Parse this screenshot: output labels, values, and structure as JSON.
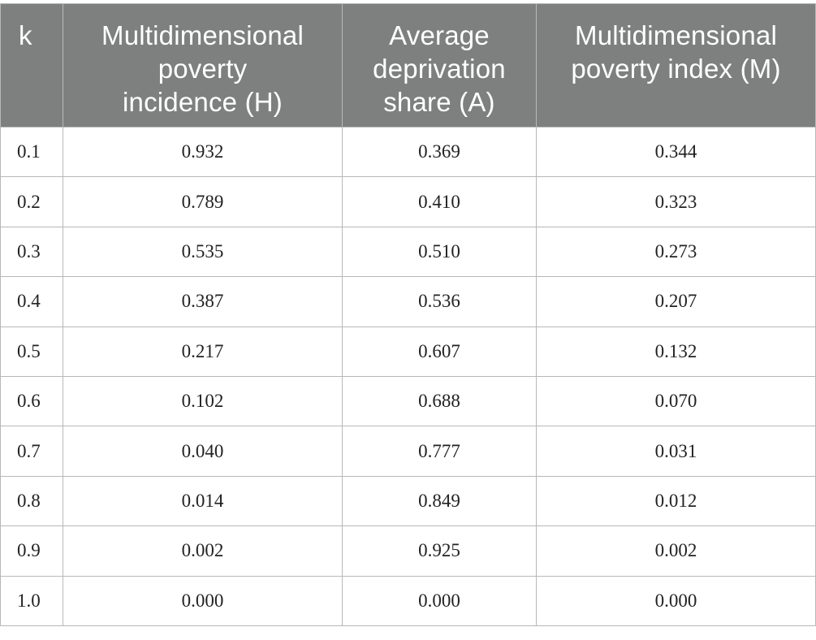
{
  "table": {
    "headers": [
      {
        "lines": [
          "k"
        ]
      },
      {
        "lines": [
          "Multidimensional",
          "poverty",
          "incidence (H)"
        ]
      },
      {
        "lines": [
          "Average",
          "deprivation",
          "share (A)"
        ]
      },
      {
        "lines": [
          "Multidimensional",
          "poverty index (M)"
        ]
      }
    ],
    "rows": [
      [
        "0.1",
        "0.932",
        "0.369",
        "0.344"
      ],
      [
        "0.2",
        "0.789",
        "0.410",
        "0.323"
      ],
      [
        "0.3",
        "0.535",
        "0.510",
        "0.273"
      ],
      [
        "0.4",
        "0.387",
        "0.536",
        "0.207"
      ],
      [
        "0.5",
        "0.217",
        "0.607",
        "0.132"
      ],
      [
        "0.6",
        "0.102",
        "0.688",
        "0.070"
      ],
      [
        "0.7",
        "0.040",
        "0.777",
        "0.031"
      ],
      [
        "0.8",
        "0.014",
        "0.849",
        "0.012"
      ],
      [
        "0.9",
        "0.002",
        "0.925",
        "0.002"
      ],
      [
        "1.0",
        "0.000",
        "0.000",
        "0.000"
      ]
    ]
  },
  "colors": {
    "header_background": "#7e807f",
    "header_text": "#ffffff",
    "grid_lines": "#b8b8b8",
    "cell_text": "#222222"
  }
}
